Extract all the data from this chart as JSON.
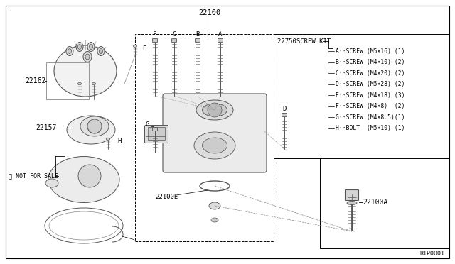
{
  "bg_color": "#ffffff",
  "line_color": "#000000",
  "gray_line": "#888888",
  "dark_gray": "#555555",
  "mid_gray": "#999999",
  "part_main": "22100",
  "part_22162": "22162",
  "part_22157": "22157",
  "part_22100e": "22100E",
  "part_22100a": "22100A",
  "screw_kit": "22750SCREW KIT",
  "not_for_sale": "※ NOT FOR SALE",
  "ref_code": "R1P0001",
  "kit_items": [
    "A··SCREW (M5×16) (1)",
    "B··SCREW (M4×10) (2)",
    "C··SCREW (M4×20) (2)",
    "D··SCREW (M5×28) (2)",
    "E··SCREW (M4×18) (3)",
    "F··SCREW (M4×8)  (2)",
    "G··SCREW (M4×8.5)(1)",
    "H··BOLT  (M5×10) (1)"
  ]
}
